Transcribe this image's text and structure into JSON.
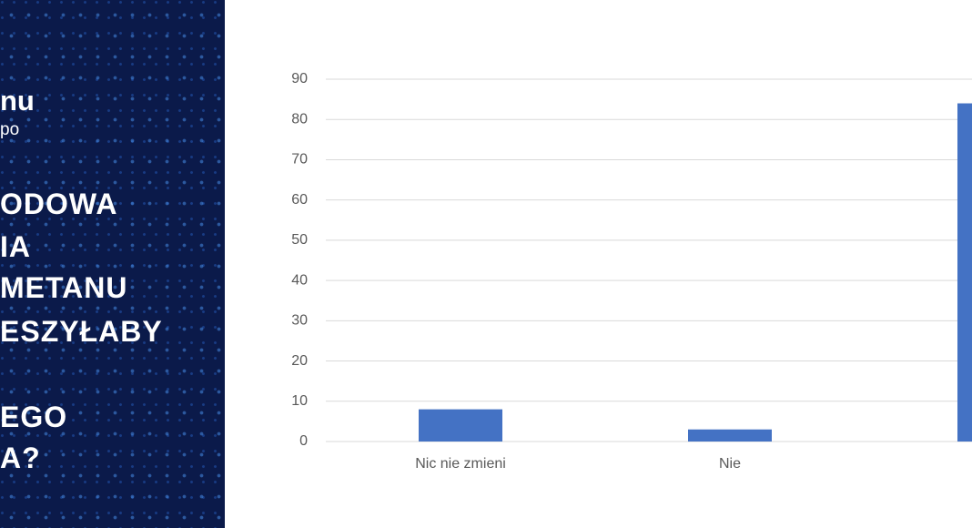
{
  "panel": {
    "brand": [
      "nu",
      "po"
    ],
    "lines": [
      "ODOWA",
      "IA",
      "METANU",
      "ESZYŁABY",
      "EGO",
      "A?"
    ]
  },
  "chart_data": {
    "type": "bar",
    "categories": [
      "Nic nie zmieni",
      "Nie",
      null
    ],
    "values": [
      8,
      3,
      84
    ],
    "color": "#4472c4",
    "ylim": [
      0,
      90
    ],
    "yticks": [
      0,
      10,
      20,
      30,
      40,
      50,
      60,
      70,
      80,
      90
    ],
    "grid": true
  }
}
